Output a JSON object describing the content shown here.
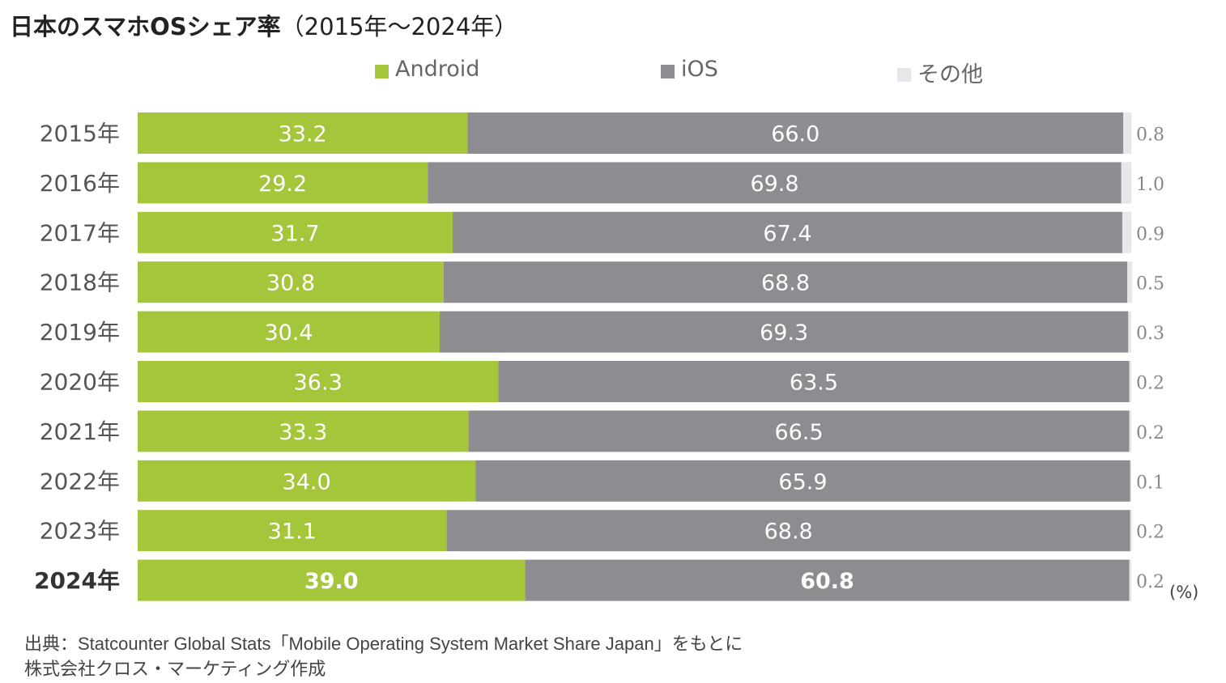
{
  "title_bold": "日本のスマホOSシェア率",
  "title_range": "（2015年～2024年）",
  "colors": {
    "android": "#a5c53b",
    "ios": "#8d8c91",
    "other": "#e6e7eb",
    "label_other": "#888888",
    "category": "#555555"
  },
  "chart_data": {
    "type": "bar",
    "orientation": "horizontal",
    "stacked": true,
    "title": "日本のスマホOSシェア率（2015年～2024年）",
    "categories": [
      "2015年",
      "2016年",
      "2017年",
      "2018年",
      "2019年",
      "2020年",
      "2021年",
      "2022年",
      "2023年",
      "2024年"
    ],
    "highlight_category": "2024年",
    "series": [
      {
        "name": "Android",
        "key": "android",
        "values": [
          33.2,
          29.2,
          31.7,
          30.8,
          30.4,
          36.3,
          33.3,
          34.0,
          31.1,
          39.0
        ]
      },
      {
        "name": "iOS",
        "key": "ios",
        "values": [
          66.0,
          69.8,
          67.4,
          68.8,
          69.3,
          63.5,
          66.5,
          65.9,
          68.8,
          60.8
        ]
      },
      {
        "name": "その他",
        "key": "other",
        "values": [
          0.8,
          1.0,
          0.9,
          0.5,
          0.3,
          0.2,
          0.2,
          0.1,
          0.2,
          0.2
        ]
      }
    ],
    "unit_label": "(%)",
    "xlim": [
      0,
      100
    ],
    "grid": false,
    "legend_position": "top"
  },
  "footer": {
    "line1": "出典：Statcounter Global Stats「Mobile Operating System Market Share Japan」をもとに",
    "line2": "株式会社クロス・マーケティング作成"
  }
}
